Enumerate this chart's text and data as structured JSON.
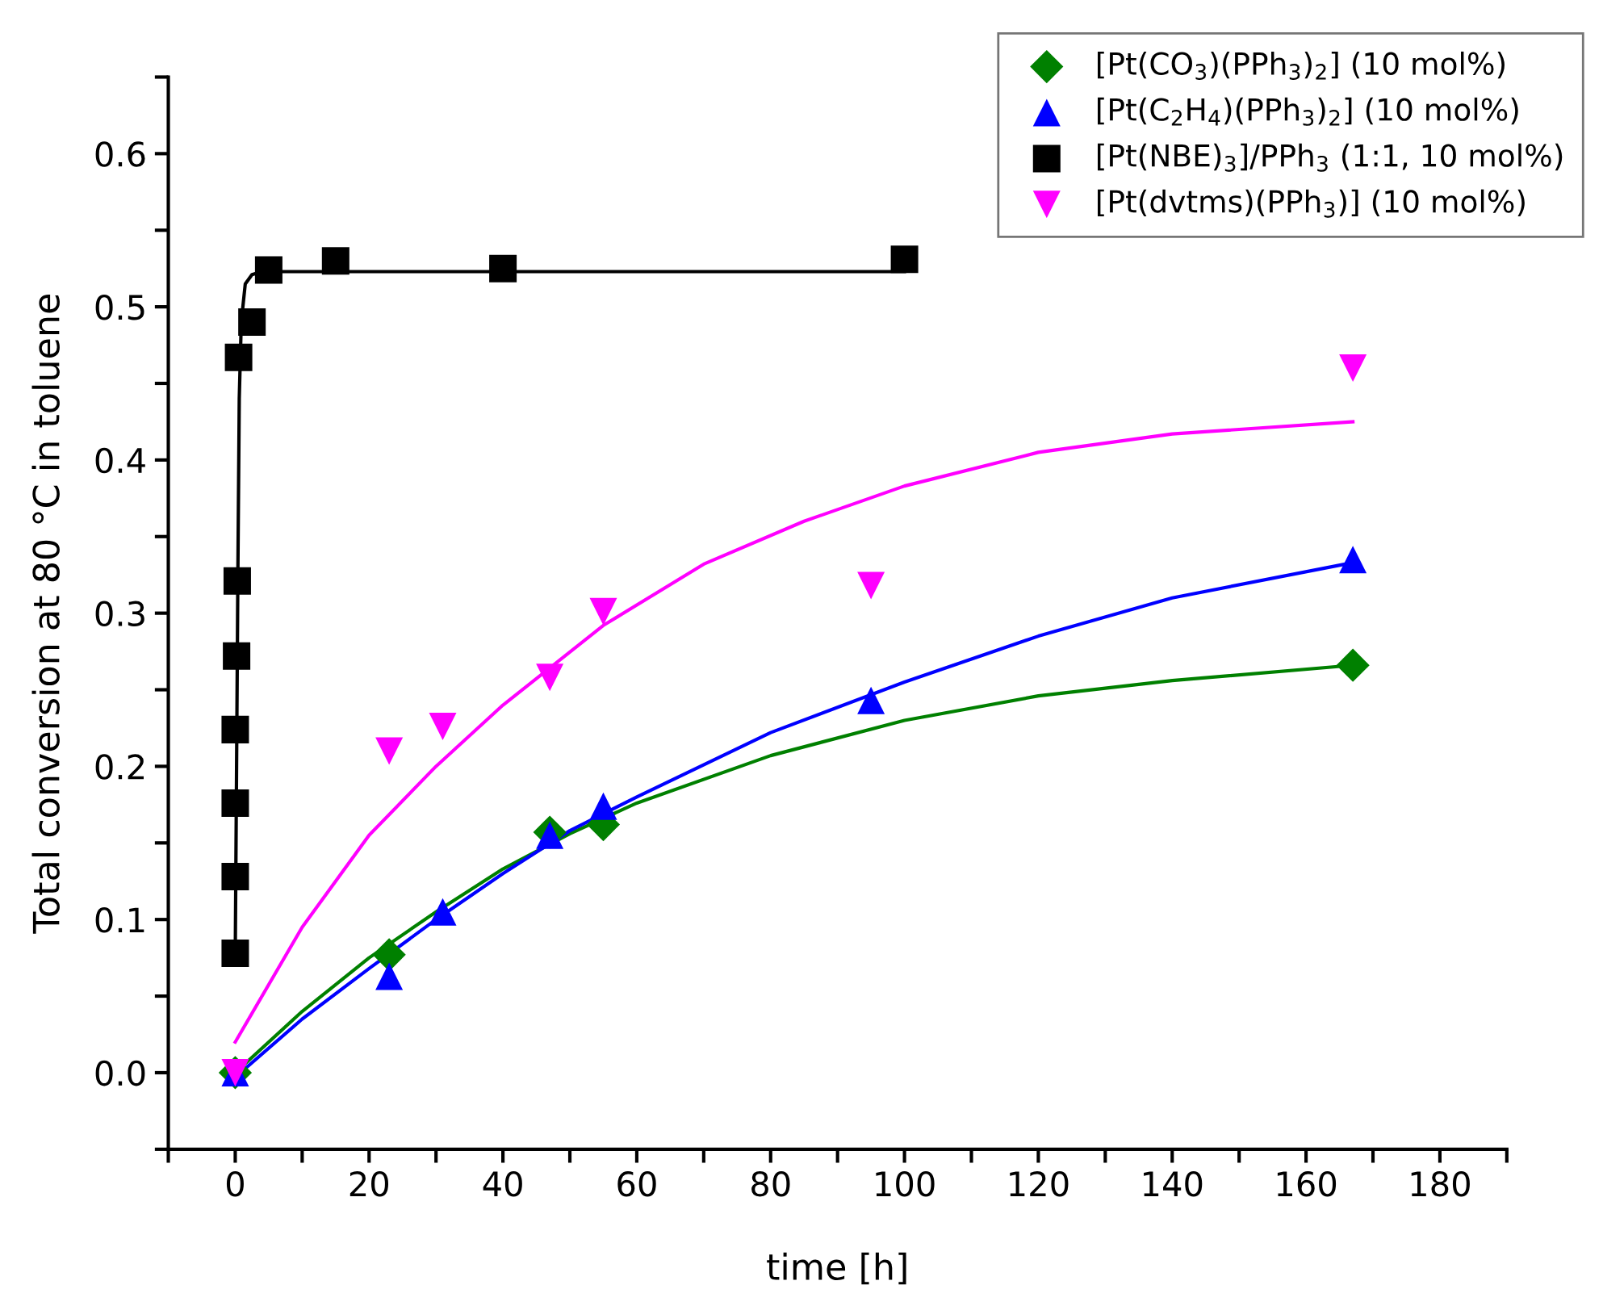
{
  "chart_data": {
    "type": "scatter",
    "xlabel": "time [h]",
    "ylabel": "Total conversion at 80 °C in toluene",
    "xlim": [
      -10,
      190
    ],
    "ylim": [
      -0.05,
      0.65
    ],
    "xticks": [
      {
        "value": -10,
        "label": null
      },
      0,
      {
        "value": 10,
        "label": null
      },
      20,
      {
        "value": 30,
        "label": null
      },
      40,
      {
        "value": 50,
        "label": null
      },
      60,
      {
        "value": 70,
        "label": null
      },
      80,
      {
        "value": 90,
        "label": null
      },
      100,
      {
        "value": 110,
        "label": null
      },
      120,
      {
        "value": 130,
        "label": null
      },
      140,
      {
        "value": 150,
        "label": null
      },
      160,
      {
        "value": 170,
        "label": null
      },
      180,
      {
        "value": 190,
        "label": null
      }
    ],
    "yticks": [
      {
        "value": -0.05,
        "label": null
      },
      {
        "value": 0.0,
        "label": "0.0"
      },
      {
        "value": 0.05,
        "label": null
      },
      {
        "value": 0.1,
        "label": "0.1"
      },
      {
        "value": 0.15,
        "label": null
      },
      {
        "value": 0.2,
        "label": "0.2"
      },
      {
        "value": 0.25,
        "label": null
      },
      {
        "value": 0.3,
        "label": "0.3"
      },
      {
        "value": 0.35,
        "label": null
      },
      {
        "value": 0.4,
        "label": "0.4"
      },
      {
        "value": 0.45,
        "label": null
      },
      {
        "value": 0.5,
        "label": "0.5"
      },
      {
        "value": 0.55,
        "label": null
      },
      {
        "value": 0.6,
        "label": "0.6"
      },
      {
        "value": 0.65,
        "label": null
      }
    ],
    "grid": false,
    "legend": "top right",
    "series": [
      {
        "type": "line",
        "color": "#008000",
        "marker": "none",
        "x": [
          0,
          10,
          20,
          30,
          40,
          50,
          60,
          80,
          100,
          120,
          140,
          167
        ],
        "values": [
          0,
          0.04,
          0.075,
          0.105,
          0.133,
          0.156,
          0.176,
          0.207,
          0.23,
          0.246,
          0.256,
          0.266
        ]
      },
      {
        "type": "line",
        "color": "#0000ff",
        "marker": "none",
        "x": [
          0,
          10,
          20,
          30,
          40,
          50,
          60,
          80,
          100,
          120,
          140,
          167
        ],
        "values": [
          -0.003,
          0.035,
          0.068,
          0.1,
          0.13,
          0.158,
          0.18,
          0.222,
          0.255,
          0.285,
          0.31,
          0.333
        ]
      },
      {
        "type": "line",
        "color": "#000000",
        "marker": "none",
        "x": [
          0,
          0.2,
          0.4,
          0.6,
          0.9,
          1.5,
          2.5,
          4,
          100
        ],
        "values": [
          0.075,
          0.2,
          0.33,
          0.44,
          0.49,
          0.515,
          0.521,
          0.523,
          0.523
        ]
      },
      {
        "type": "line",
        "color": "#ff00ff",
        "marker": "none",
        "x": [
          0,
          10,
          20,
          30,
          40,
          55,
          70,
          85,
          100,
          120,
          140,
          167
        ],
        "values": [
          0.02,
          0.095,
          0.155,
          0.2,
          0.24,
          0.292,
          0.332,
          0.36,
          0.383,
          0.405,
          0.417,
          0.425
        ]
      },
      {
        "name": "[Pt(CO$_{3}$)(PPh$_{3}$)$_{2}$] (10 mol%)",
        "color": "#008000",
        "marker": "diamond",
        "x": [
          0,
          23,
          47,
          55,
          167
        ],
        "values": [
          0,
          0.077,
          0.157,
          0.162,
          0.266
        ]
      },
      {
        "name": "[Pt(C$_{2}$H$_{4}$)(PPh$_{3}$)$_{2}$] (10 mol%)",
        "color": "#0000ff",
        "marker": "triangle",
        "x": [
          0,
          23,
          31,
          47,
          55,
          95,
          167
        ],
        "values": [
          0,
          0.063,
          0.105,
          0.155,
          0.174,
          0.243,
          0.335
        ]
      },
      {
        "name": "[Pt(NBE)$_{3}$]/PPh$_{3}$ (1:1, 10 mol%)",
        "color": "#000000",
        "marker": "square",
        "x": [
          0,
          0,
          0,
          0,
          0.2,
          0.3,
          0.5,
          2.5,
          5,
          15,
          40,
          100
        ],
        "values": [
          0.078,
          0.128,
          0.176,
          0.224,
          0.272,
          0.321,
          0.467,
          0.49,
          0.524,
          0.53,
          0.525,
          0.531
        ]
      },
      {
        "name": "[Pt(dvtms)(PPh$_{3}$)] (10 mol%)",
        "color": "#ff00ff",
        "marker": "triangle_down",
        "x": [
          0,
          23,
          31,
          47,
          55,
          95,
          167
        ],
        "values": [
          0,
          0.21,
          0.226,
          0.258,
          0.301,
          0.318,
          0.46
        ]
      }
    ]
  }
}
